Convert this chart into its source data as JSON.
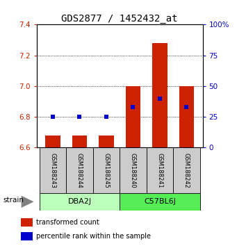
{
  "title": "GDS2877 / 1452432_at",
  "samples": [
    "GSM188243",
    "GSM188244",
    "GSM188245",
    "GSM188240",
    "GSM188241",
    "GSM188242"
  ],
  "transformed_counts": [
    6.68,
    6.68,
    6.68,
    7.0,
    7.28,
    7.0
  ],
  "percentile_ranks": [
    25,
    25,
    25,
    33,
    40,
    33
  ],
  "ylim_left": [
    6.6,
    7.4
  ],
  "ylim_right": [
    0,
    100
  ],
  "yticks_left": [
    6.6,
    6.8,
    7.0,
    7.2,
    7.4
  ],
  "yticks_right": [
    0,
    25,
    50,
    75,
    100
  ],
  "bar_color": "#cc2200",
  "dot_color": "#0000cc",
  "bar_bottom": 6.6,
  "bar_width": 0.55,
  "title_fontsize": 10,
  "tick_fontsize": 7.5,
  "sample_box_color": "#cccccc",
  "dba2j_color": "#bbffbb",
  "c57bl6j_color": "#55ee55",
  "legend_red_label": "transformed count",
  "legend_blue_label": "percentile rank within the sample",
  "strain_label": "strain"
}
